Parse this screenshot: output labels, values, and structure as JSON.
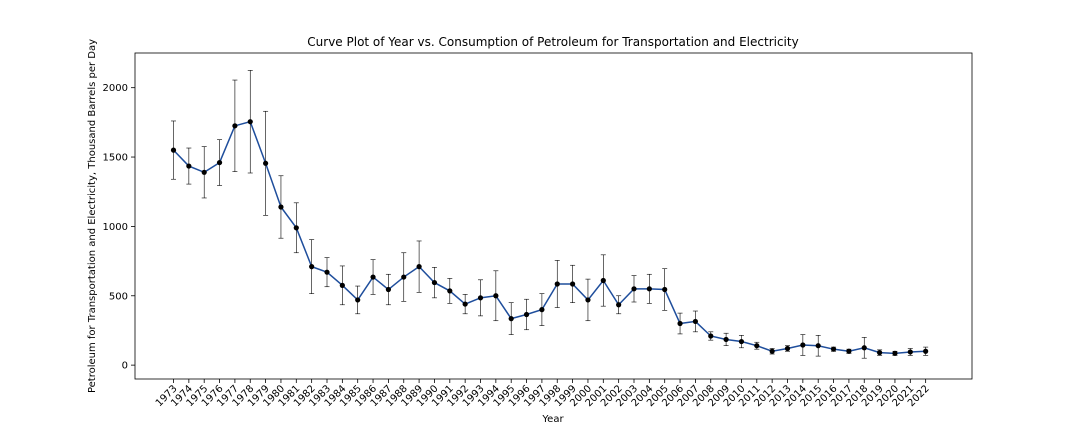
{
  "chart_data": {
    "type": "line",
    "title": "Curve Plot of Year vs. Consumption of Petroleum for Transportation and Electricity",
    "xlabel": "Year",
    "ylabel": "Petroleum for Transportation and Electricity, Thousand Barrels per Day",
    "ylim": [
      -100,
      2250
    ],
    "yticks": [
      0,
      500,
      1000,
      1500,
      2000
    ],
    "grid": false,
    "categories": [
      "1973",
      "1974",
      "1975",
      "1976",
      "1977",
      "1978",
      "1979",
      "1980",
      "1981",
      "1982",
      "1983",
      "1984",
      "1985",
      "1986",
      "1987",
      "1988",
      "1989",
      "1990",
      "1991",
      "1992",
      "1993",
      "1994",
      "1995",
      "1996",
      "1997",
      "1998",
      "1999",
      "2000",
      "2001",
      "2002",
      "2003",
      "2004",
      "2005",
      "2006",
      "2007",
      "2008",
      "2009",
      "2010",
      "2011",
      "2012",
      "2013",
      "2014",
      "2015",
      "2016",
      "2017",
      "2018",
      "2019",
      "2020",
      "2021",
      "2022"
    ],
    "values": [
      1550,
      1435,
      1390,
      1460,
      1725,
      1755,
      1455,
      1140,
      990,
      710,
      670,
      575,
      470,
      635,
      545,
      635,
      710,
      595,
      535,
      440,
      485,
      500,
      335,
      365,
      400,
      585,
      585,
      470,
      610,
      435,
      550,
      550,
      545,
      300,
      315,
      210,
      185,
      170,
      140,
      100,
      120,
      145,
      140,
      115,
      100,
      125,
      90,
      85,
      95,
      100
    ],
    "error": [
      210,
      130,
      185,
      165,
      330,
      370,
      375,
      225,
      180,
      195,
      105,
      140,
      100,
      125,
      110,
      175,
      185,
      110,
      90,
      70,
      130,
      180,
      115,
      110,
      115,
      170,
      135,
      150,
      185,
      65,
      95,
      105,
      150,
      75,
      75,
      30,
      45,
      45,
      25,
      20,
      20,
      75,
      75,
      15,
      15,
      75,
      20,
      15,
      25,
      30
    ]
  }
}
